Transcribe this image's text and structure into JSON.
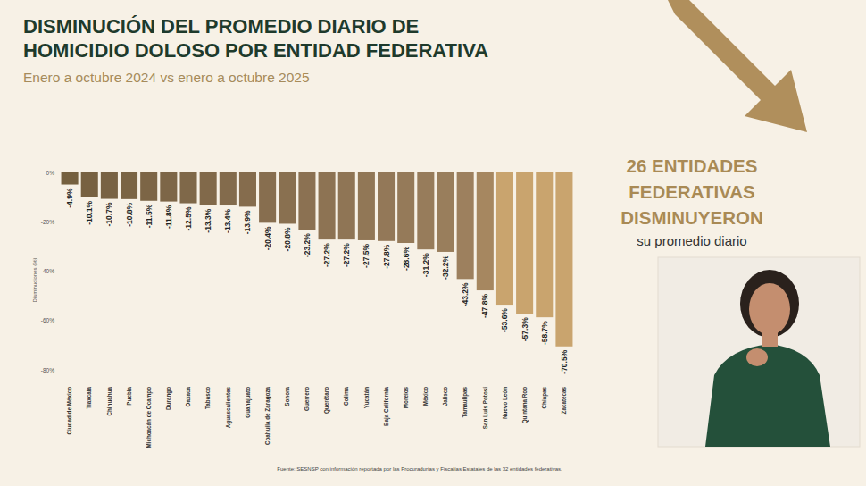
{
  "chart_data": {
    "type": "bar",
    "title": "DISMINUCIÓN DEL PROMEDIO DIARIO DE\nHOMICIDIO DOLOSO POR ENTIDAD FEDERATIVA",
    "subtitle": "Enero a octubre 2024 vs enero a octubre 2025",
    "y_label": "Disminuciones (%)",
    "annotations": [
      "26 ENTIDADES\nFEDERATIVAS\nDISMINUYERON",
      "su promedio diario"
    ],
    "source": "Fuente: SESNSP con información reportada por las Procuradurías y Fiscalías Estatales de las 32 entidades federativas.",
    "categories": [
      "Ciudad de México",
      "Tlaxcala",
      "Chihuahua",
      "Puebla",
      "Michoacán de Ocampo",
      "Durango",
      "Oaxaca",
      "Tabasco",
      "Aguascalientes",
      "Guanajuato",
      "Coahuila de Zaragoza",
      "Sonora",
      "Guerrero",
      "Querétaro",
      "Colima",
      "Yucatán",
      "Baja California",
      "Morelos",
      "México",
      "Jalisco",
      "Tamaulipas",
      "San Luis Potosí",
      "Nuevo León",
      "Quintana Roo",
      "Chiapas",
      "Zacatecas"
    ],
    "values": [
      -4.9,
      -10.1,
      -10.7,
      -10.8,
      -11.5,
      -11.8,
      -12.5,
      -13.3,
      -13.4,
      -13.9,
      -20.4,
      -20.8,
      -23.2,
      -27.2,
      -27.2,
      -27.5,
      -27.8,
      -28.6,
      -31.2,
      -32.2,
      -43.2,
      -47.8,
      -53.6,
      -57.3,
      -58.7,
      -70.5
    ],
    "value_labels": [
      "-4.9%",
      "-10.1%",
      "-10.7%",
      "-10.8%",
      "-11.5%",
      "-11.8%",
      "-12.5%",
      "-13.3%",
      "-13.4%",
      "-13.9%",
      "-20.4%",
      "-20.8%",
      "-23.2%",
      "-27.2%",
      "-27.2%",
      "-27.5%",
      "-27.8%",
      "-28.6%",
      "-31.2%",
      "-32.2%",
      "-43.2%",
      "-47.8%",
      "-53.6%",
      "-57.3%",
      "-58.7%",
      "-70.5%"
    ],
    "colors": [
      "#75603f",
      "#776141",
      "#786243",
      "#7a6444",
      "#7c6546",
      "#7d6647",
      "#7f6849",
      "#81694a",
      "#836b4c",
      "#856c4d",
      "#876e4f",
      "#897050",
      "#8b7152",
      "#8d7353",
      "#8f7555",
      "#917756",
      "#937858",
      "#957a59",
      "#977c5b",
      "#997e5c",
      "#9d805e",
      "#a68760",
      "#c9a46e",
      "#c9a46e",
      "#c9a46e",
      "#c9a46e"
    ],
    "ylim": [
      -80,
      0
    ],
    "yticks": [
      {
        "value": 0,
        "label": "0%"
      },
      {
        "value": -20,
        "label": "-20%"
      },
      {
        "value": -40,
        "label": "-40%"
      },
      {
        "value": -60,
        "label": "-60%"
      },
      {
        "value": -80,
        "label": "-80%"
      }
    ],
    "grid": false,
    "data_labels": true
  }
}
